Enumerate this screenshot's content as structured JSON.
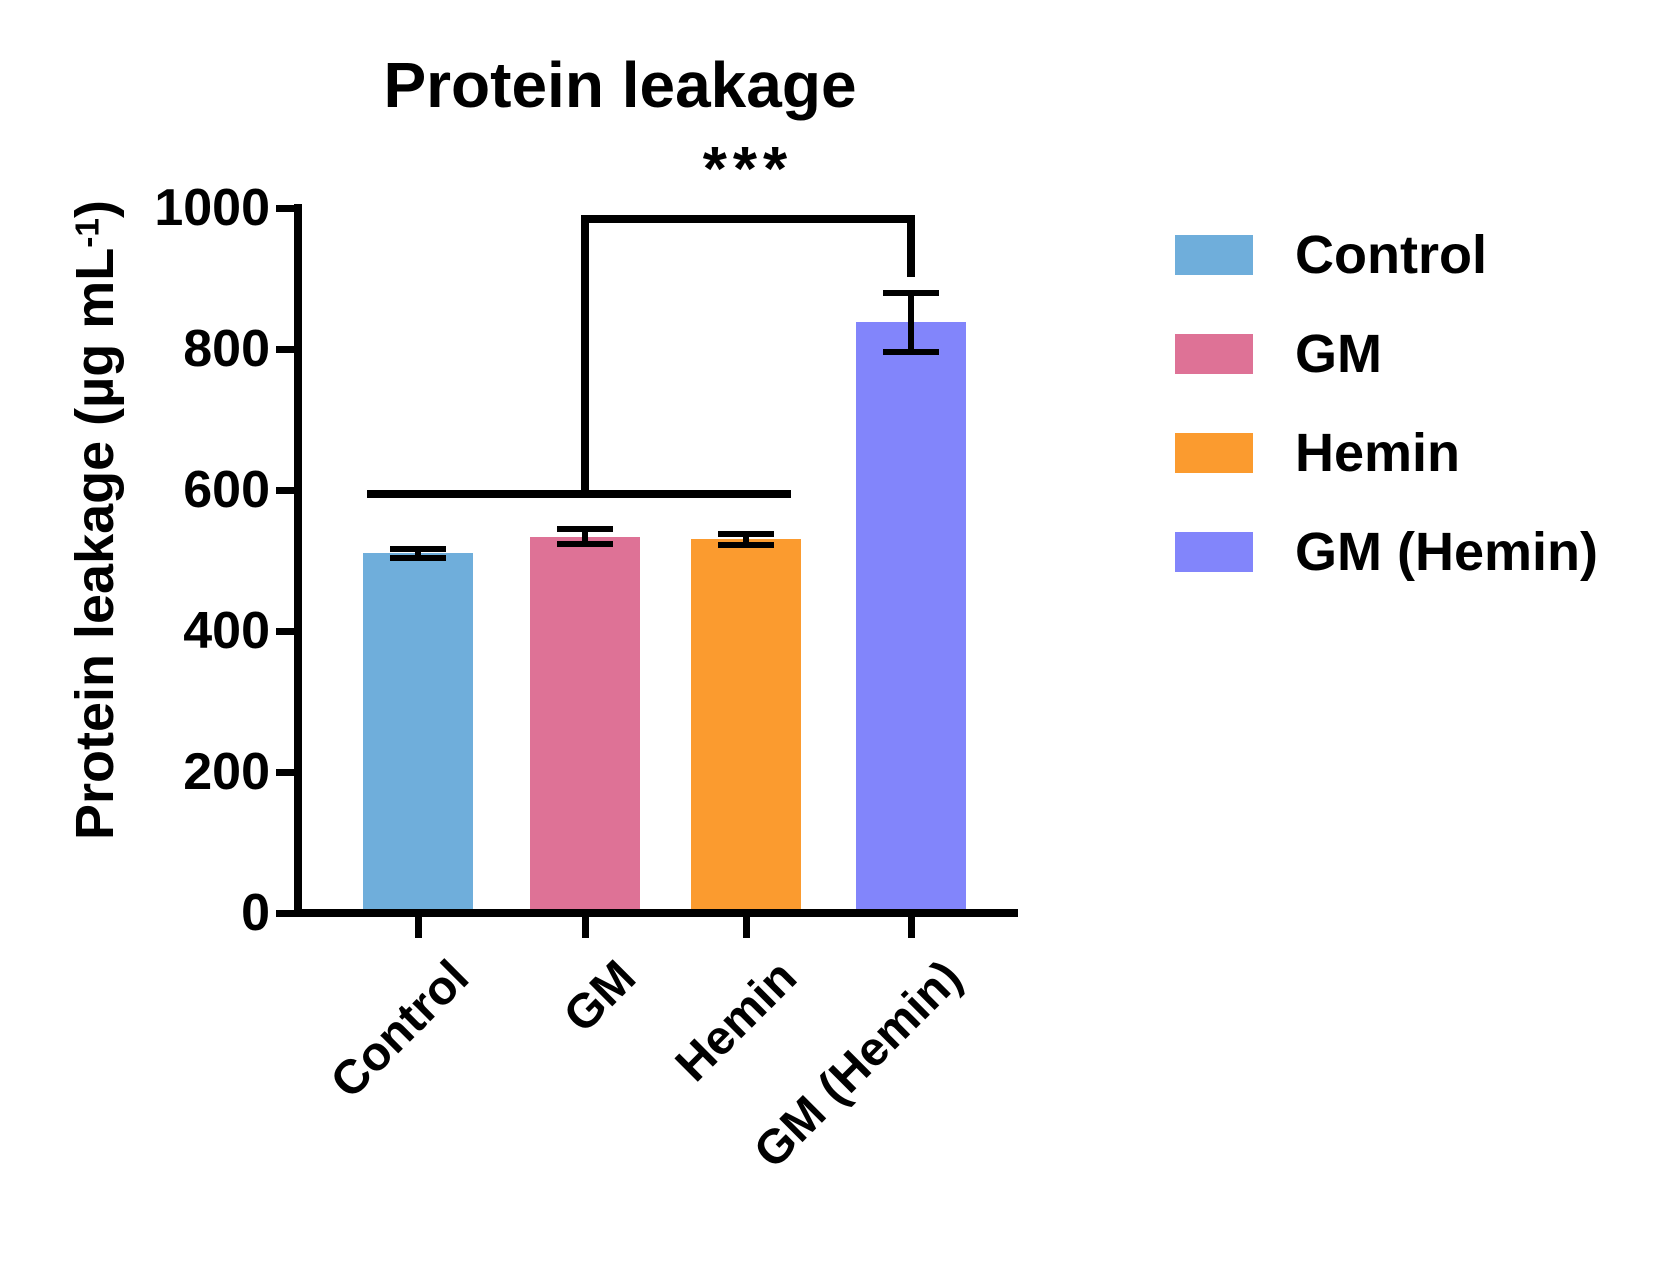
{
  "title": "Protein leakage",
  "ylabel_parts": {
    "pre": "Protein leakage (µg mL",
    "sup": "-1",
    "post": ")"
  },
  "chart_data": {
    "type": "bar",
    "title": "Protein leakage",
    "xlabel": "",
    "ylabel": "Protein leakage (µg mL⁻¹)",
    "categories": [
      "Control",
      "GM",
      "Hemin",
      "GM (Hemin)"
    ],
    "values": [
      510,
      534,
      530,
      838
    ],
    "errors": [
      7,
      10,
      8,
      42
    ],
    "error_style": "both-caps",
    "bar_colors": [
      "#6FAEDB",
      "#DE7296",
      "#FB9B2F",
      "#8285FB"
    ],
    "axis_color": "#000000",
    "ylim": [
      0,
      1000
    ],
    "yticks": [
      0,
      200,
      400,
      600,
      800,
      1000
    ],
    "grid": false,
    "legend_position": "right",
    "significance": {
      "label": "***",
      "compared_groups": [
        "Control",
        "GM",
        "Hemin"
      ],
      "target_group": "GM (Hemin)",
      "group_line_value": 595,
      "bracket_top_value": 985,
      "bracket_drop_end_value": 908
    }
  },
  "legend": {
    "items": [
      {
        "label": "Control",
        "color": "#6FAEDB"
      },
      {
        "label": "GM",
        "color": "#DE7296"
      },
      {
        "label": "Hemin",
        "color": "#FB9B2F"
      },
      {
        "label": "GM (Hemin)",
        "color": "#8285FB"
      }
    ]
  }
}
